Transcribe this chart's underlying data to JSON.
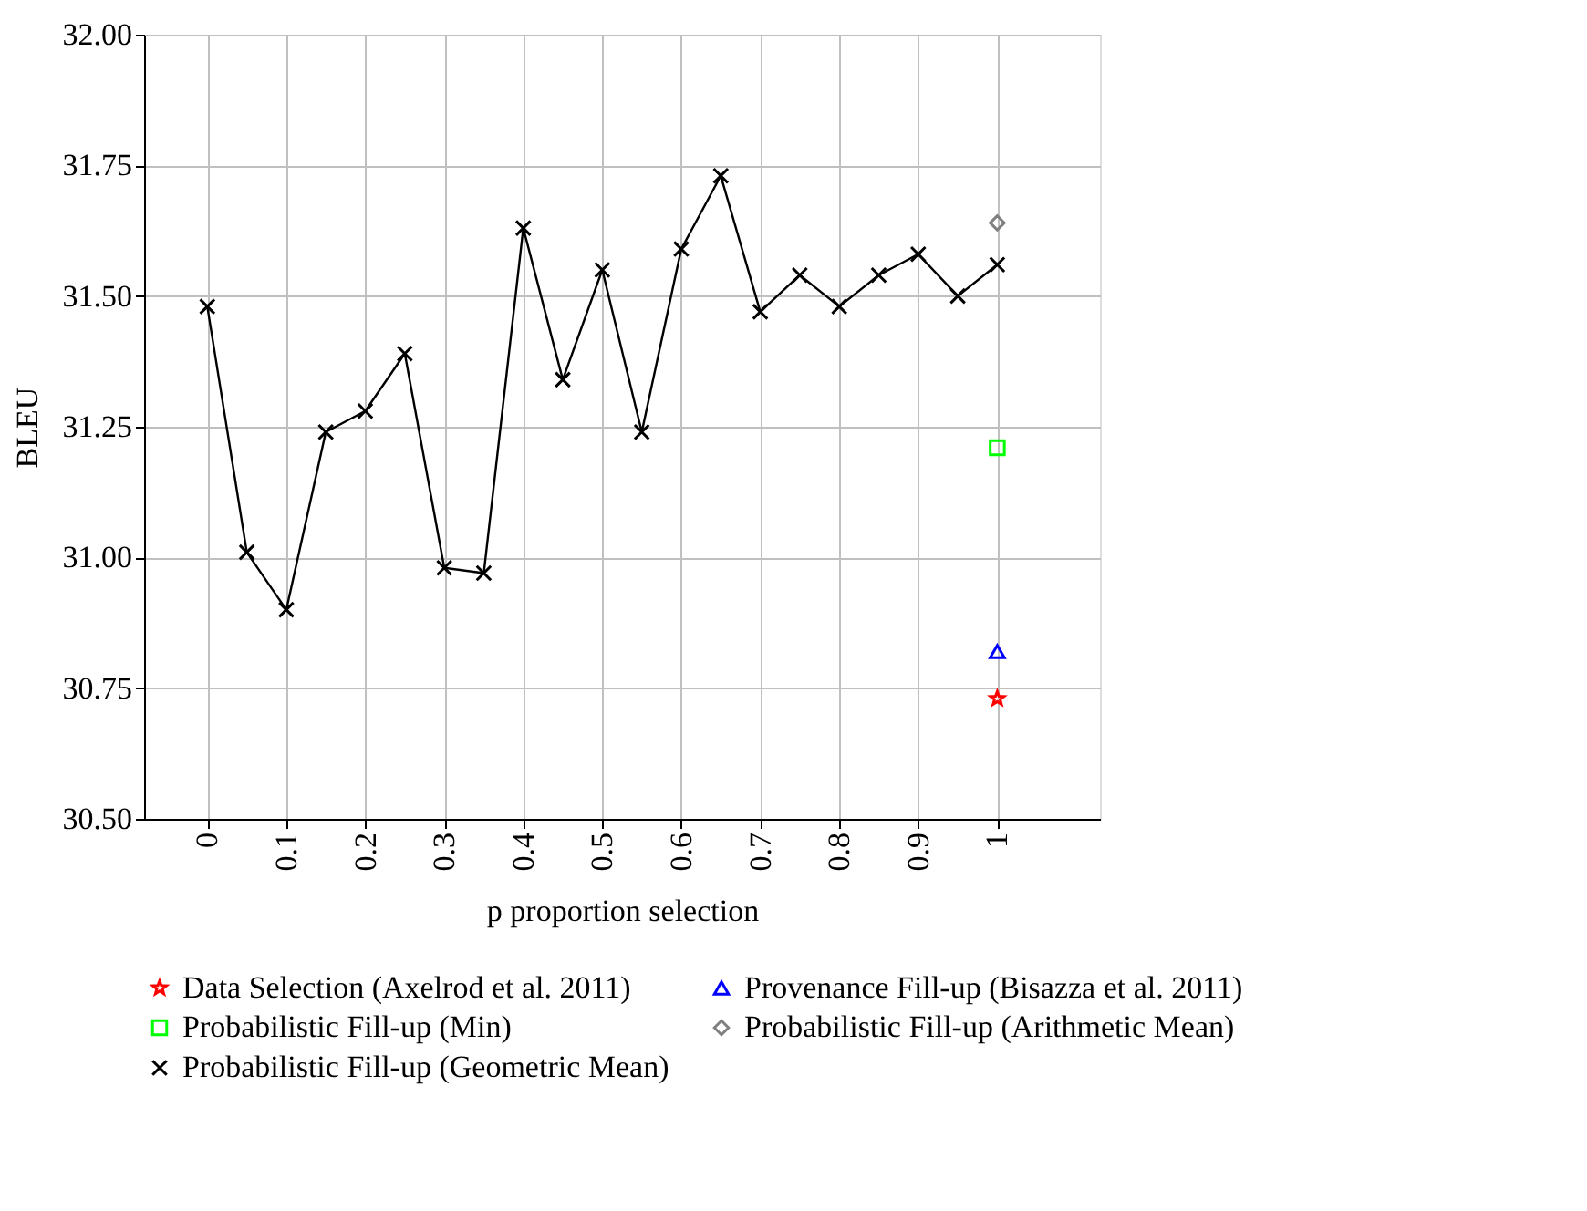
{
  "chart_data": {
    "type": "line",
    "xlabel": "p proportion selection",
    "ylabel": "BLEU",
    "xlim": [
      -0.08,
      1.13
    ],
    "xticks": [
      0,
      0.1,
      0.2,
      0.3,
      0.4,
      0.5,
      0.6,
      0.7,
      0.8,
      0.9,
      1
    ],
    "ylim": [
      30.5,
      32.0
    ],
    "yticks": [
      {
        "value": 30.5,
        "label": "30.50"
      },
      {
        "value": 30.75,
        "label": "30.75"
      },
      {
        "value": 31.0,
        "label": "31.00"
      },
      {
        "value": 31.25,
        "label": "31.25"
      },
      {
        "value": 31.5,
        "label": "31.50"
      },
      {
        "value": 31.75,
        "label": "31.75"
      },
      {
        "value": 32.0,
        "label": "32.00"
      }
    ],
    "grid": true,
    "legend": "bottom",
    "series": [
      {
        "name": "Data Selection (Axelrod et al. 2011)",
        "type": "scatter",
        "marker": "star",
        "color": "#ff0000",
        "x": [
          1
        ],
        "values": [
          30.73
        ]
      },
      {
        "name": "Provenance Fill-up (Bisazza et al. 2011)",
        "type": "scatter",
        "marker": "triangle",
        "color": "#0000ff",
        "x": [
          1
        ],
        "values": [
          30.82
        ]
      },
      {
        "name": "Probabilistic Fill-up (Min)",
        "type": "scatter",
        "marker": "square",
        "color": "#00ff00",
        "x": [
          1
        ],
        "values": [
          31.21
        ]
      },
      {
        "name": "Probabilistic Fill-up (Arithmetic Mean)",
        "type": "scatter",
        "marker": "diamond",
        "color": "#808080",
        "x": [
          1
        ],
        "values": [
          31.64
        ]
      },
      {
        "name": "Probabilistic Fill-up (Geometric Mean)",
        "type": "line",
        "marker": "cross",
        "color": "#000000",
        "x": [
          0,
          0.05,
          0.1,
          0.15,
          0.2,
          0.25,
          0.3,
          0.35,
          0.4,
          0.45,
          0.5,
          0.55,
          0.6,
          0.65,
          0.7,
          0.75,
          0.8,
          0.85,
          0.9,
          0.95,
          1
        ],
        "values": [
          31.48,
          31.01,
          30.9,
          31.24,
          31.28,
          31.39,
          30.98,
          30.97,
          31.63,
          31.34,
          31.55,
          31.24,
          31.59,
          31.73,
          31.47,
          31.54,
          31.48,
          31.54,
          31.58,
          31.5,
          31.56
        ]
      }
    ]
  }
}
